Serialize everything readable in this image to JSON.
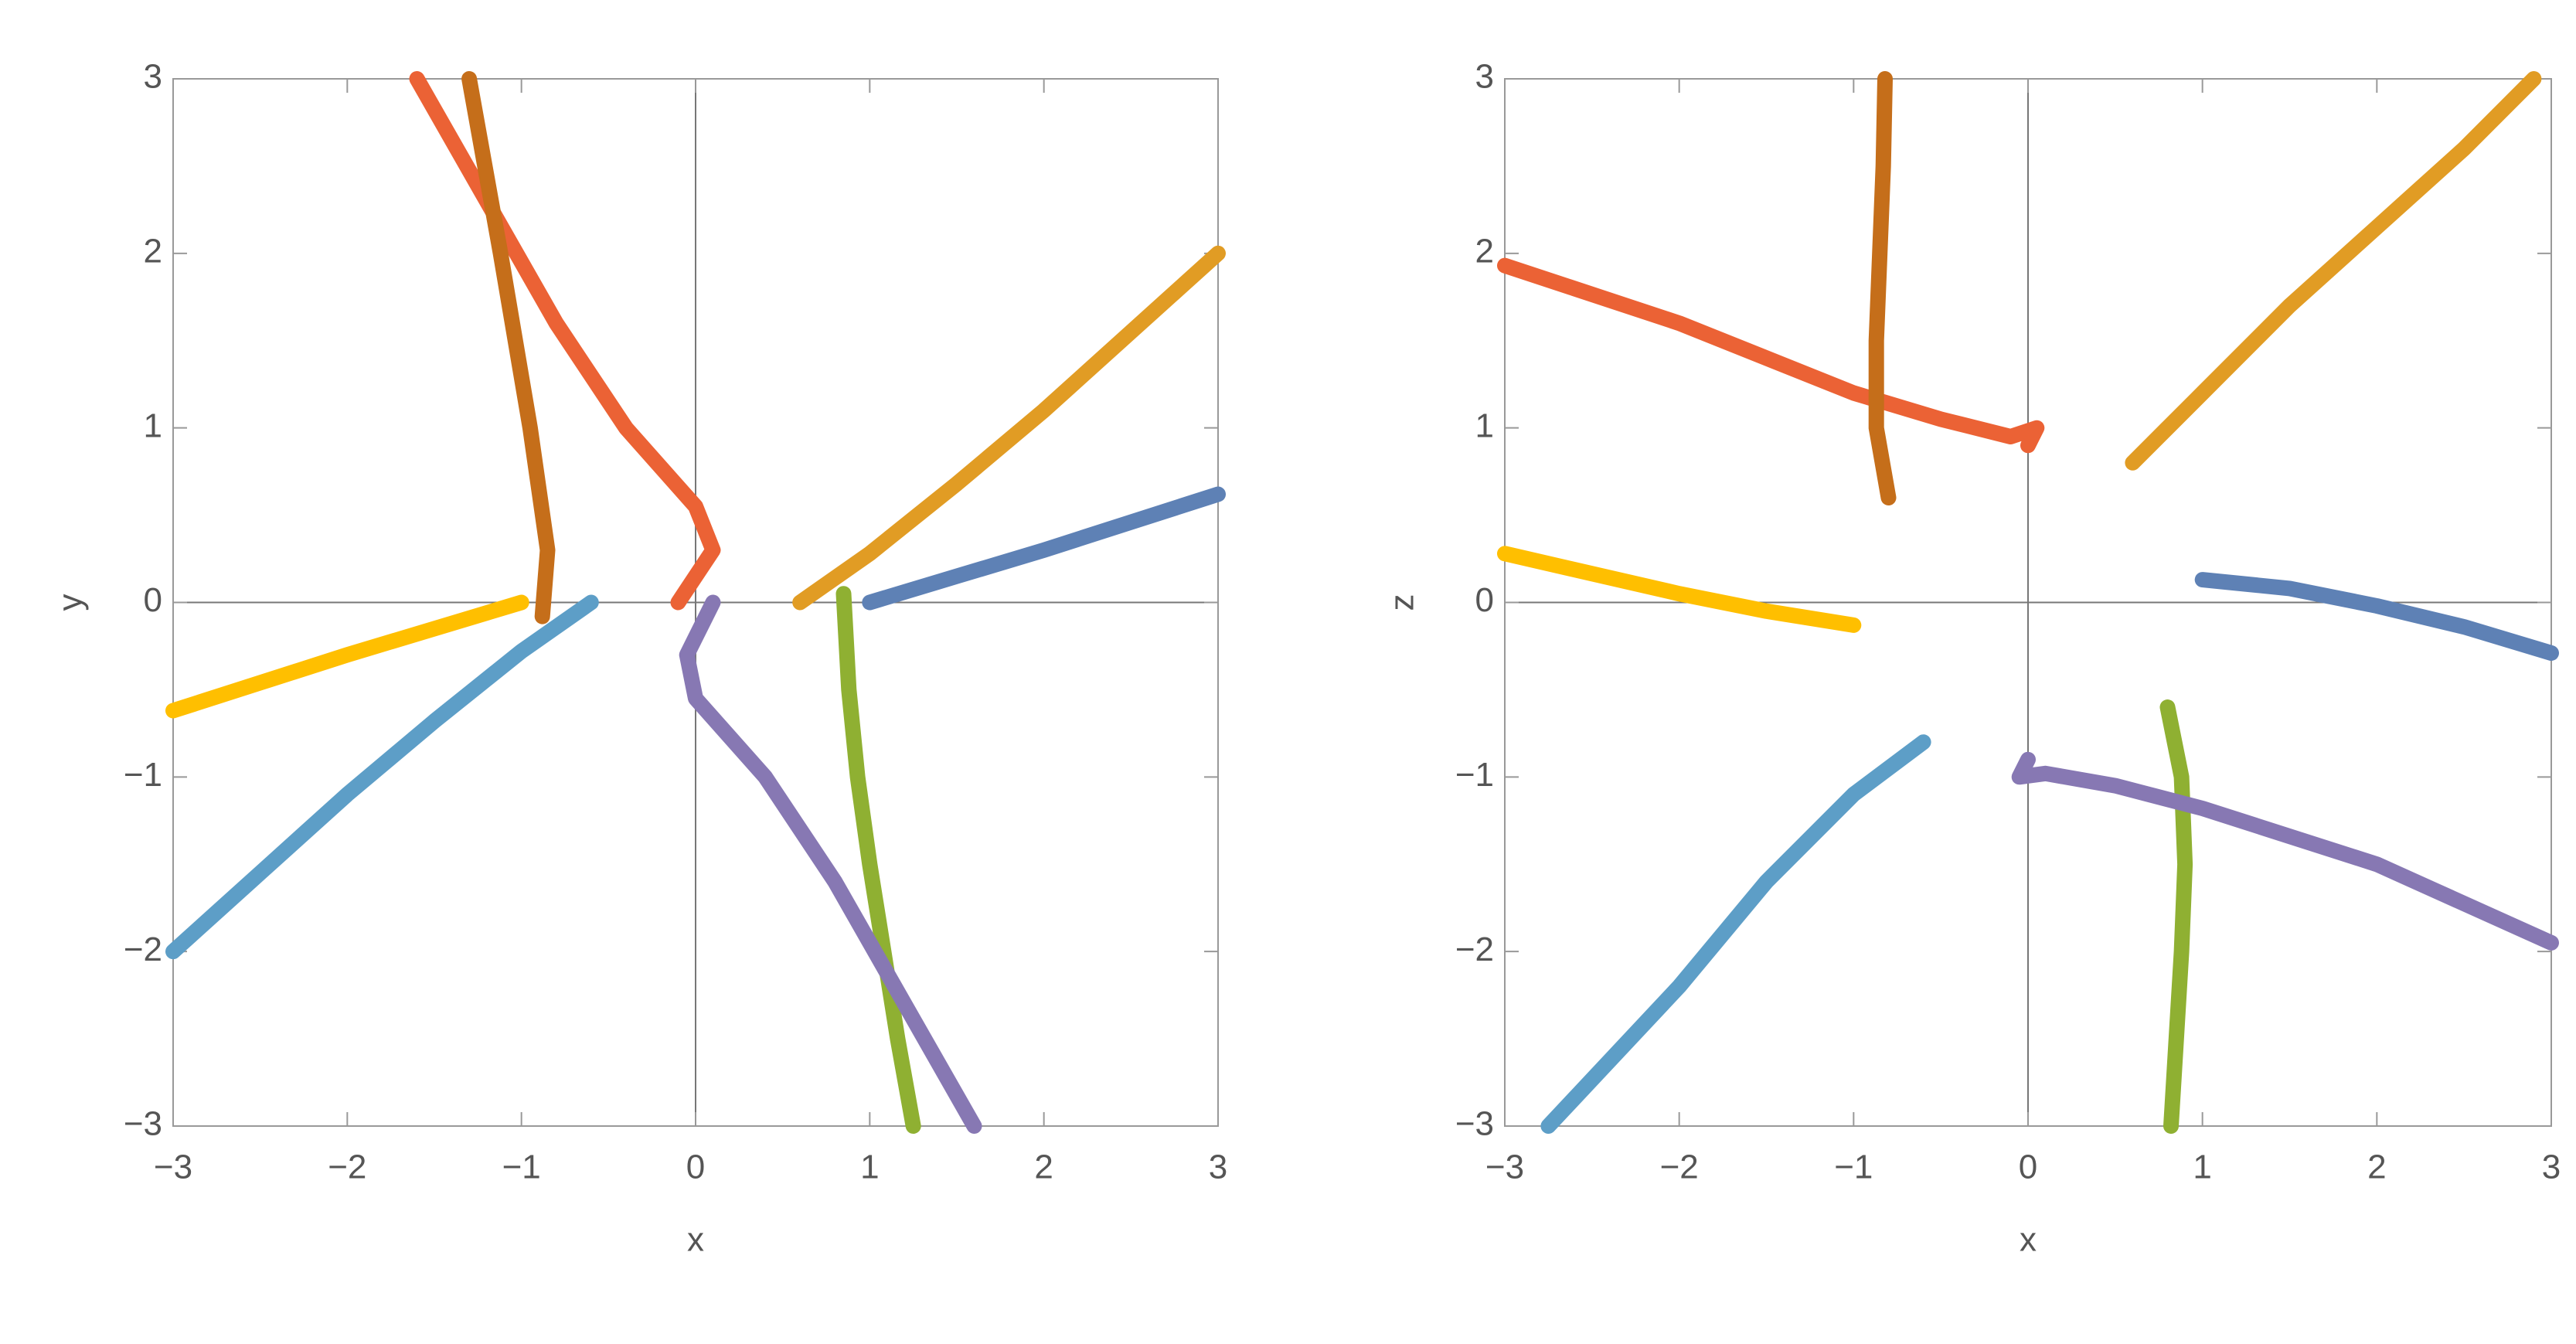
{
  "chart_data": [
    {
      "type": "line",
      "xlabel": "x",
      "ylabel": "y",
      "xlim": [
        -3,
        3
      ],
      "ylim": [
        -3,
        3
      ],
      "xticks": [
        {
          "value": -3,
          "label": "−3"
        },
        {
          "value": -2,
          "label": "−2"
        },
        {
          "value": -1,
          "label": "−1"
        },
        0,
        1,
        2,
        3
      ],
      "yticks": [
        {
          "value": -3,
          "label": "−3"
        },
        {
          "value": -2,
          "label": "−2"
        },
        {
          "value": -1,
          "label": "−1"
        },
        0,
        1,
        2,
        3
      ],
      "series": [
        {
          "color": "#5e81b5",
          "x": [
            1,
            1.5,
            2,
            2.5,
            3
          ],
          "values": [
            0,
            0.15,
            0.3,
            0.46,
            0.62
          ]
        },
        {
          "color": "#e19c24",
          "x": [
            0.6,
            1,
            1.5,
            2,
            2.5,
            3
          ],
          "values": [
            0,
            0.28,
            0.68,
            1.1,
            1.55,
            2.0
          ]
        },
        {
          "color": "#8fb032",
          "x": [
            0.85,
            0.88,
            0.93,
            1.0,
            1.08,
            1.16,
            1.25
          ],
          "values": [
            0.05,
            -0.5,
            -1,
            -1.5,
            -2,
            -2.5,
            -3
          ]
        },
        {
          "color": "#eb6235",
          "x": [
            -1.6,
            -1.2,
            -0.8,
            -0.4,
            0,
            0.1,
            -0.1
          ],
          "values": [
            3,
            2.3,
            1.6,
            1.0,
            0.55,
            0.3,
            0
          ]
        },
        {
          "color": "#8778b3",
          "x": [
            0.1,
            -0.05,
            0,
            0.4,
            0.8,
            1.2,
            1.6
          ],
          "values": [
            0,
            -0.3,
            -0.55,
            -1.0,
            -1.6,
            -2.3,
            -3
          ]
        },
        {
          "color": "#c56e1a",
          "x": [
            -1.3,
            -1.12,
            -0.95,
            -0.85,
            -0.88
          ],
          "values": [
            3,
            2,
            1,
            0.3,
            -0.08
          ]
        },
        {
          "color": "#5d9ec7",
          "x": [
            -3,
            -2.5,
            -2,
            -1.5,
            -1,
            -0.6
          ],
          "values": [
            -2,
            -1.55,
            -1.1,
            -0.68,
            -0.28,
            0
          ]
        },
        {
          "color": "#ffbf00",
          "x": [
            -3,
            -2.5,
            -2,
            -1.5,
            -1
          ],
          "values": [
            -0.62,
            -0.46,
            -0.3,
            -0.15,
            0
          ]
        }
      ]
    },
    {
      "type": "line",
      "xlabel": "x",
      "ylabel": "z",
      "xlim": [
        -3,
        3
      ],
      "ylim": [
        -3,
        3
      ],
      "xticks": [
        {
          "value": -3,
          "label": "−3"
        },
        {
          "value": -2,
          "label": "−2"
        },
        {
          "value": -1,
          "label": "−1"
        },
        0,
        1,
        2,
        3
      ],
      "yticks": [
        {
          "value": -3,
          "label": "−3"
        },
        {
          "value": -2,
          "label": "−2"
        },
        {
          "value": -1,
          "label": "−1"
        },
        0,
        1,
        2,
        3
      ],
      "series": [
        {
          "color": "#5e81b5",
          "x": [
            1,
            1.5,
            2,
            2.5,
            3
          ],
          "values": [
            0.13,
            0.08,
            -0.02,
            -0.14,
            -0.29
          ]
        },
        {
          "color": "#e19c24",
          "x": [
            0.6,
            1,
            1.5,
            2,
            2.5,
            2.9
          ],
          "values": [
            0.8,
            1.2,
            1.7,
            2.15,
            2.6,
            3
          ]
        },
        {
          "color": "#8fb032",
          "x": [
            0.8,
            0.88,
            0.9,
            0.88,
            0.85,
            0.82
          ],
          "values": [
            -0.6,
            -1,
            -1.5,
            -2,
            -2.5,
            -3
          ]
        },
        {
          "color": "#eb6235",
          "x": [
            -3,
            -2,
            -1,
            -0.5,
            -0.1,
            0.05,
            0
          ],
          "values": [
            1.93,
            1.6,
            1.2,
            1.05,
            0.95,
            1.0,
            0.9
          ]
        },
        {
          "color": "#8778b3",
          "x": [
            0,
            -0.05,
            0.1,
            0.5,
            1,
            2,
            3
          ],
          "values": [
            -0.9,
            -1.0,
            -0.98,
            -1.05,
            -1.18,
            -1.5,
            -1.95
          ]
        },
        {
          "color": "#c56e1a",
          "x": [
            -0.8,
            -0.87,
            -0.87,
            -0.85,
            -0.83,
            -0.82
          ],
          "values": [
            0.6,
            1,
            1.5,
            2,
            2.5,
            3
          ]
        },
        {
          "color": "#5d9ec7",
          "x": [
            -2.75,
            -2,
            -1.5,
            -1,
            -0.6
          ],
          "values": [
            -3,
            -2.2,
            -1.6,
            -1.1,
            -0.8
          ]
        },
        {
          "color": "#ffbf00",
          "x": [
            -3,
            -2,
            -1.5,
            -1
          ],
          "values": [
            0.28,
            0.05,
            -0.05,
            -0.13
          ]
        }
      ]
    }
  ]
}
